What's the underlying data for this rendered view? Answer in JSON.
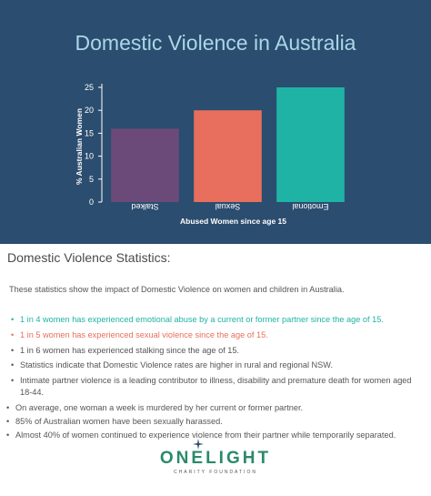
{
  "chart_data": {
    "type": "bar",
    "title": "Domestic Violence in Australia",
    "categories": [
      "Stalked",
      "Sexual",
      "Emotional"
    ],
    "values": [
      16,
      20,
      25
    ],
    "colors": [
      "#6b4a7a",
      "#e86e5d",
      "#1fb3a6"
    ],
    "xlabel": "Abused Women since age 15",
    "ylabel": "% Australian Women",
    "ylim": [
      0,
      25
    ],
    "yticks": [
      0,
      5,
      10,
      15,
      20,
      25
    ],
    "grid": false,
    "category_labels_rotated_180": true
  },
  "stats": {
    "heading": "Domestic Violence Statistics:",
    "intro": "These statistics show the impact of Domestic Violence on women and children in Australia.",
    "items": [
      {
        "text": "1 in 4 women has experienced emotional abuse by a current or former partner since the age of 15.",
        "color": "#1fb3a6"
      },
      {
        "text": "1 in 5 women has experienced sexual violence since the age of 15.",
        "color": "#e86e5d"
      },
      {
        "text": "1 in 6 women has experienced stalking since the age of 15.",
        "color": "#555555"
      },
      {
        "text": "Statistics indicate that Domestic Violence rates are higher in rural and regional NSW.",
        "color": "#555555"
      },
      {
        "text": "Intimate partner violence is a leading contributor to illness, disability and premature death for women aged 18-44.",
        "color": "#555555"
      },
      {
        "text": "On average, one woman a week is murdered by her current or former partner.",
        "color": "#555555"
      },
      {
        "text": "85% of Australian women have been sexually harassed.",
        "color": "#555555"
      },
      {
        "text": "Almost 40% of women continued to experience violence from their partner while temporarily separated.",
        "color": "#555555"
      }
    ]
  },
  "logo": {
    "name": "ONELIGHT",
    "tagline": "CHARITY FOUNDATION",
    "icon": "star-icon",
    "star_color": "#2b4d6f"
  }
}
